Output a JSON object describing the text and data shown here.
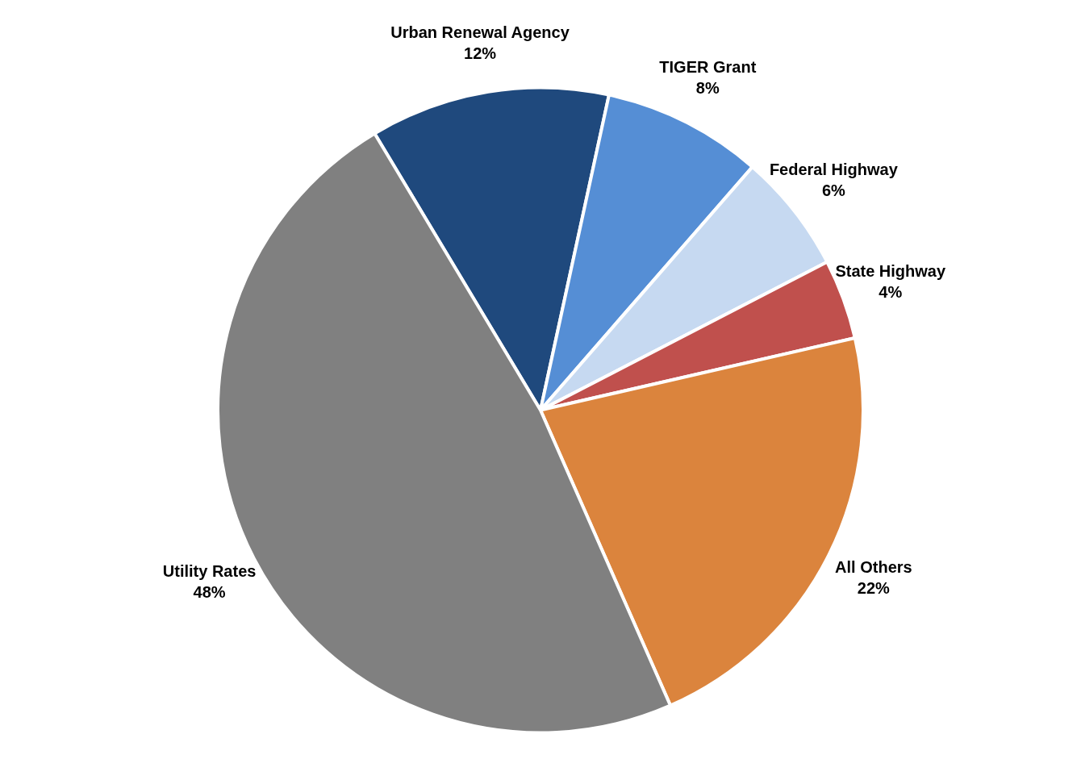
{
  "chart_data": {
    "type": "pie",
    "categories": [
      "Urban Renewal Agency",
      "TIGER Grant",
      "Federal Highway",
      "State Highway",
      "All Others",
      "Utility Rates"
    ],
    "values": [
      12,
      8,
      6,
      4,
      22,
      48
    ],
    "value_labels": [
      "12%",
      "8%",
      "6%",
      "4%",
      "22%",
      "48%"
    ],
    "colors": [
      "#1f497d",
      "#558ed5",
      "#c6d9f1",
      "#c0504d",
      "#db843d",
      "#808080"
    ],
    "legend": false
  }
}
